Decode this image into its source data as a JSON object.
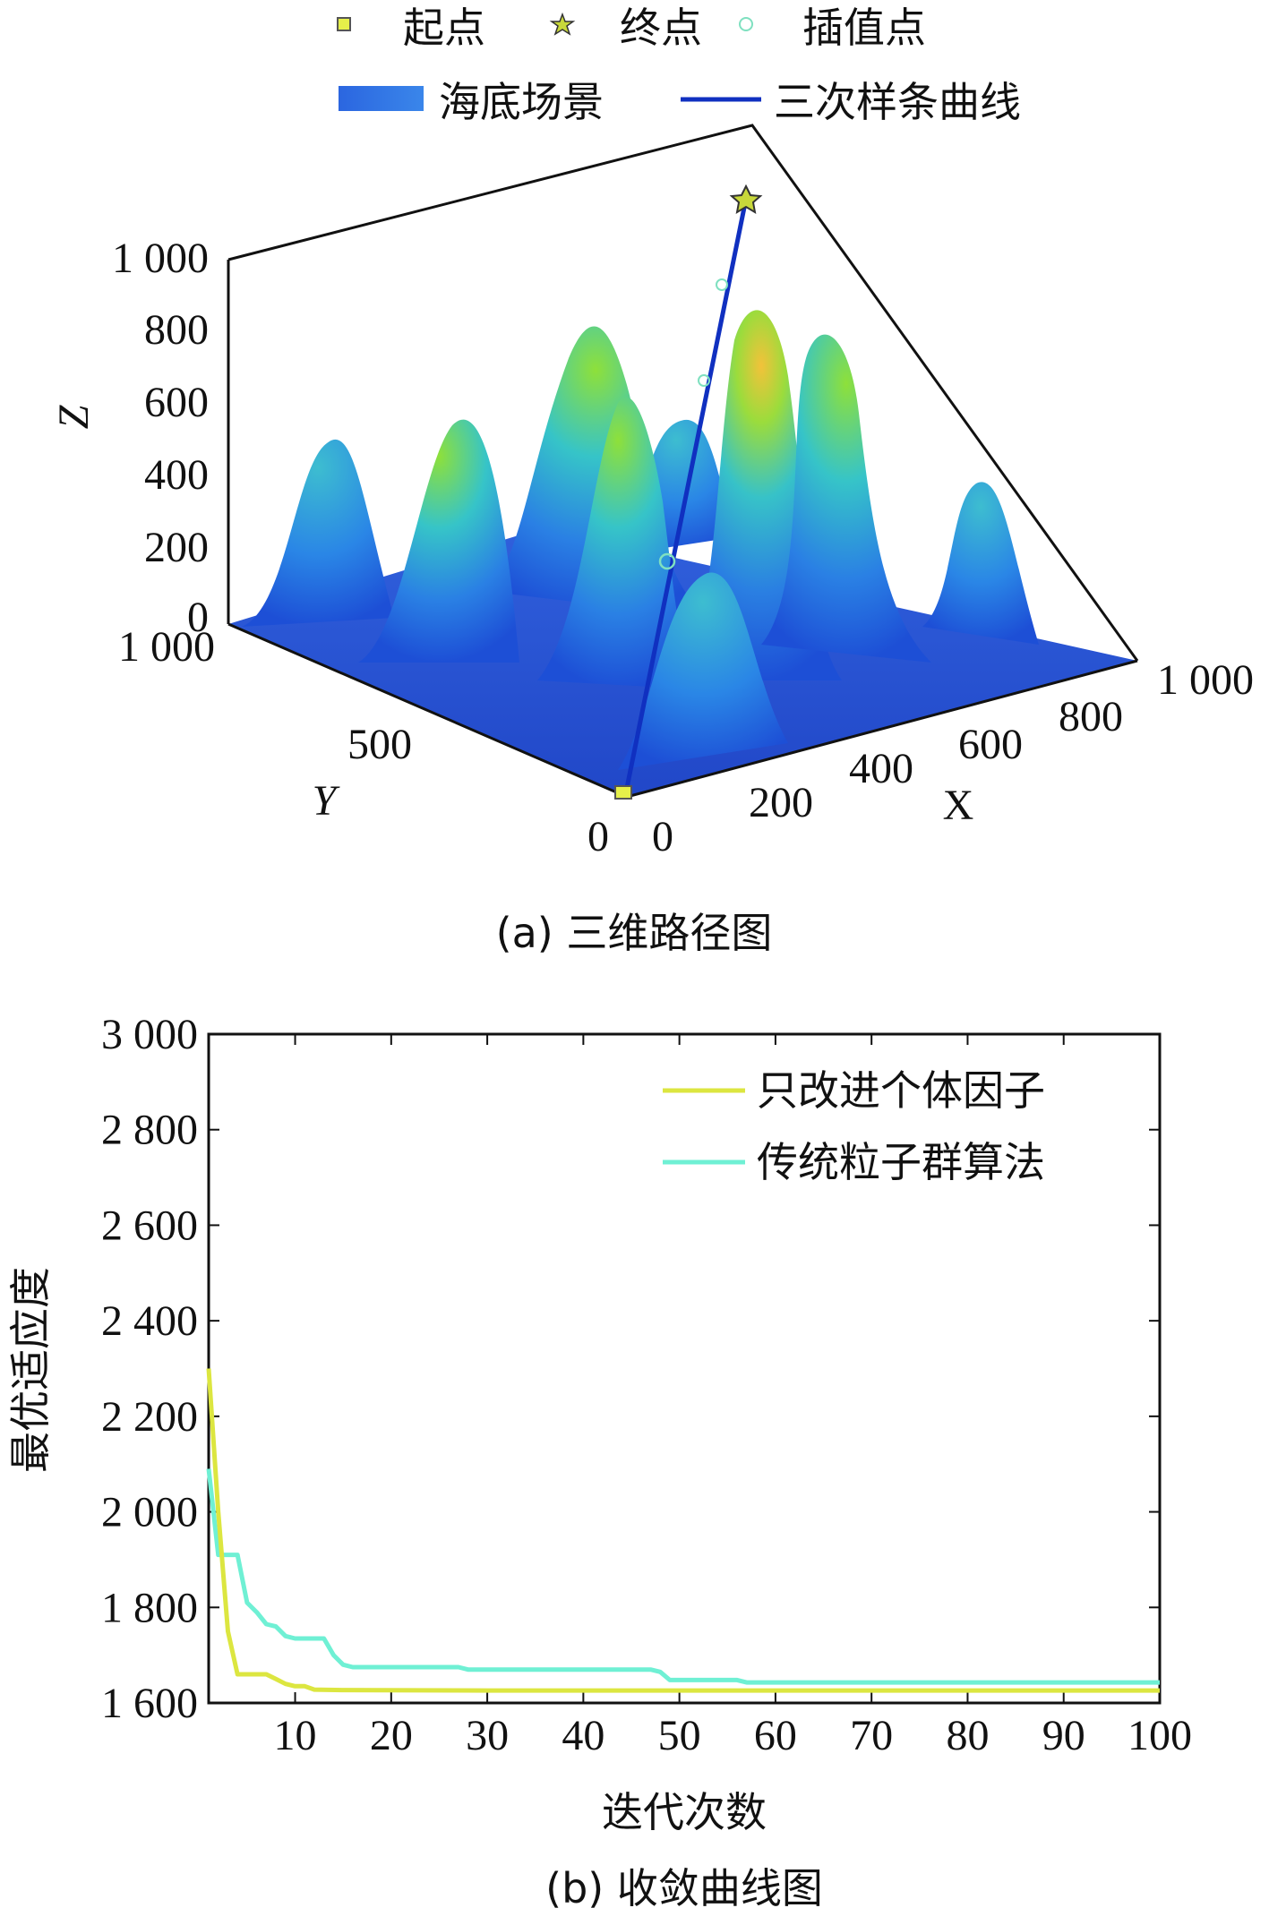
{
  "chart_data": [
    {
      "type": "surface3d",
      "caption": "(a) 三维路径图",
      "legend": [
        {
          "label": "起点",
          "marker": "square",
          "color": "#e6f04a"
        },
        {
          "label": "终点",
          "marker": "star",
          "color": "#c8d83a"
        },
        {
          "label": "插值点",
          "marker": "circle",
          "color": "#7fe0c0"
        },
        {
          "label": "海底场景",
          "marker": "patch",
          "color": "#2f6fe0"
        },
        {
          "label": "三次样条曲线",
          "marker": "line",
          "color": "#1030c0"
        }
      ],
      "xlabel": "X",
      "ylabel": "Y",
      "zlabel": "Z",
      "x_ticks": [
        "0",
        "200",
        "400",
        "600",
        "800",
        "1 000"
      ],
      "y_ticks": [
        "0",
        "500",
        "1 000"
      ],
      "z_ticks": [
        "0",
        "200",
        "400",
        "600",
        "800",
        "1 000"
      ],
      "xlim": [
        0,
        1000
      ],
      "ylim": [
        0,
        1000
      ],
      "zlim": [
        0,
        1000
      ],
      "path": {
        "start": [
          0,
          0,
          0
        ],
        "end": [
          1000,
          1000,
          1000
        ],
        "waypoints": [
          [
            300,
            500,
            200
          ],
          [
            600,
            600,
            600
          ],
          [
            800,
            800,
            800
          ]
        ]
      }
    },
    {
      "type": "line",
      "caption": "(b) 收敛曲线图",
      "xlabel": "迭代次数",
      "ylabel": "最优适应度",
      "xlim": [
        1,
        100
      ],
      "ylim": [
        1600,
        3000
      ],
      "x_ticks": [
        "10",
        "20",
        "30",
        "40",
        "50",
        "60",
        "70",
        "80",
        "90",
        "100"
      ],
      "y_ticks": [
        "1 600",
        "1 800",
        "2 000",
        "2 200",
        "2 400",
        "2 600",
        "2 800",
        "3 000"
      ],
      "legend_position": "top-right",
      "series": [
        {
          "name": "只改进个体因子",
          "color": "#dce640",
          "points": [
            [
              1,
              2300
            ],
            [
              2,
              2000
            ],
            [
              3,
              1750
            ],
            [
              4,
              1660
            ],
            [
              5,
              1660
            ],
            [
              6,
              1660
            ],
            [
              7,
              1660
            ],
            [
              8,
              1650
            ],
            [
              9,
              1640
            ],
            [
              10,
              1635
            ],
            [
              11,
              1635
            ],
            [
              12,
              1628
            ],
            [
              15,
              1627
            ],
            [
              30,
              1626
            ],
            [
              50,
              1626
            ],
            [
              100,
              1626
            ]
          ]
        },
        {
          "name": "传统粒子群算法",
          "color": "#6ff0d4",
          "points": [
            [
              1,
              2090
            ],
            [
              2,
              1910
            ],
            [
              3,
              1910
            ],
            [
              4,
              1910
            ],
            [
              5,
              1810
            ],
            [
              6,
              1790
            ],
            [
              7,
              1765
            ],
            [
              8,
              1760
            ],
            [
              9,
              1740
            ],
            [
              10,
              1735
            ],
            [
              13,
              1735
            ],
            [
              14,
              1700
            ],
            [
              15,
              1680
            ],
            [
              16,
              1675
            ],
            [
              27,
              1675
            ],
            [
              28,
              1670
            ],
            [
              47,
              1670
            ],
            [
              48,
              1665
            ],
            [
              49,
              1648
            ],
            [
              56,
              1648
            ],
            [
              57,
              1643
            ],
            [
              100,
              1643
            ]
          ]
        }
      ]
    }
  ]
}
